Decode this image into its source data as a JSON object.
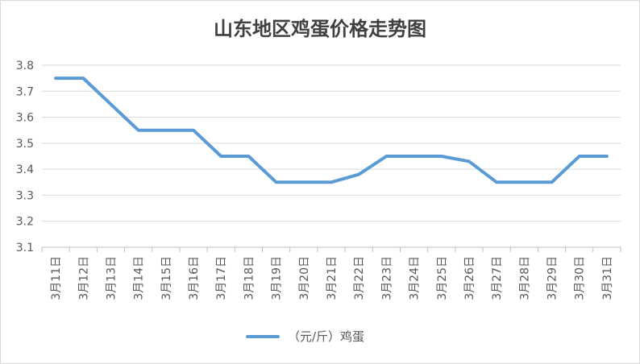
{
  "chart_data": {
    "type": "line",
    "title": "山东地区鸡蛋价格走势图",
    "categories": [
      "3月11日",
      "3月12日",
      "3月13日",
      "3月14日",
      "3月15日",
      "3月16日",
      "3月17日",
      "3月18日",
      "3月19日",
      "3月20日",
      "3月21日",
      "3月22日",
      "3月23日",
      "3月24日",
      "3月25日",
      "3月26日",
      "3月27日",
      "3月28日",
      "3月29日",
      "3月30日",
      "3月31日"
    ],
    "series": [
      {
        "name": "（元/斤）鸡蛋",
        "values": [
          3.75,
          3.75,
          3.65,
          3.55,
          3.55,
          3.55,
          3.45,
          3.45,
          3.35,
          3.35,
          3.35,
          3.38,
          3.45,
          3.45,
          3.45,
          3.43,
          3.35,
          3.35,
          3.35,
          3.45,
          3.45
        ],
        "color": "#5b9bd5"
      }
    ],
    "ylim": [
      3.1,
      3.8
    ],
    "yticks": [
      "3.1",
      "3.2",
      "3.3",
      "3.4",
      "3.5",
      "3.6",
      "3.7",
      "3.8"
    ],
    "grid": true,
    "legend": "bottom"
  }
}
